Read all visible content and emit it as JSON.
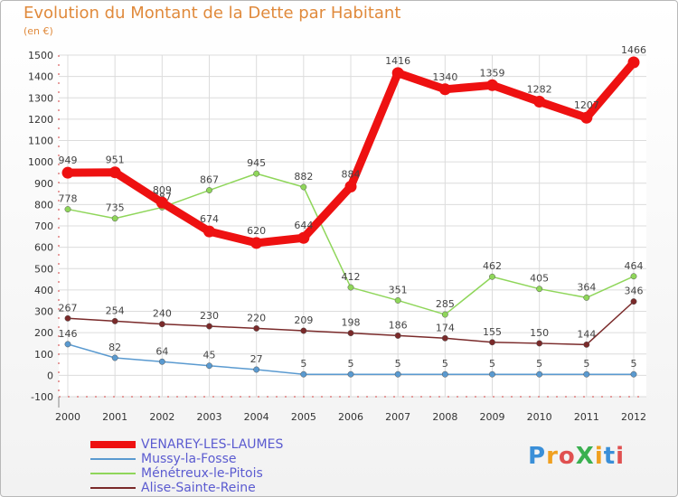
{
  "title": "Evolution du Montant de la Dette par Habitant",
  "subtitle": "(en €)",
  "logo": {
    "text": "ProXiti",
    "colors": [
      "#3a8fd8",
      "#f0a020",
      "#e05050",
      "#3ab050",
      "#f0a020",
      "#3a8fd8",
      "#e05050"
    ]
  },
  "chart_data": {
    "type": "line",
    "x": [
      "2000",
      "2001",
      "2002",
      "2003",
      "2004",
      "2005",
      "2006",
      "2007",
      "2008",
      "2009",
      "2010",
      "2011",
      "2012"
    ],
    "ylim": [
      -100,
      1500
    ],
    "yticks": [
      "-100",
      "0",
      "100",
      "200",
      "300",
      "400",
      "500",
      "600",
      "700",
      "800",
      "900",
      "1000",
      "1100",
      "1200",
      "1300",
      "1400",
      "1500"
    ],
    "grid": true,
    "legend_position": "bottom-left",
    "series": [
      {
        "name": "Ménétreux-le-Pitois",
        "color": "#8fd65a",
        "values": [
          778,
          735,
          787,
          867,
          945,
          882,
          412,
          351,
          285,
          462,
          405,
          364,
          464
        ],
        "labels": [
          "778",
          "735",
          "787",
          "867",
          "945",
          "882",
          "412",
          "351",
          "285",
          "462",
          "405",
          "364",
          "464"
        ]
      },
      {
        "name": "Alise-Sainte-Reine",
        "color": "#7a2a2a",
        "values": [
          267,
          254,
          240,
          230,
          220,
          209,
          198,
          186,
          174,
          155,
          150,
          144,
          346
        ],
        "labels": [
          "267",
          "254",
          "240",
          "230",
          "220",
          "209",
          "198",
          "186",
          "174",
          "155",
          "150",
          "144",
          "346"
        ]
      },
      {
        "name": "Mussy-la-Fosse",
        "color": "#5a9ad0",
        "values": [
          146,
          82,
          64,
          45,
          27,
          5,
          5,
          5,
          5,
          5,
          5,
          5,
          5
        ],
        "labels": [
          "146",
          "82",
          "64",
          "45",
          "27",
          "5",
          "5",
          "5",
          "5",
          "5",
          "5",
          "5",
          "5"
        ]
      },
      {
        "name": "VENAREY-LES-LAUMES",
        "color": "#ee1111",
        "values": [
          949,
          951,
          809,
          674,
          620,
          644,
          884,
          1416,
          1340,
          1359,
          1282,
          1207,
          1466
        ],
        "labels": [
          "949",
          "951",
          "809",
          "674",
          "620",
          "644",
          "884",
          "1416",
          "1340",
          "1359",
          "1282",
          "1207",
          "1466"
        ]
      }
    ],
    "legend": [
      {
        "name": "VENAREY-LES-LAUMES",
        "color": "#ee1111",
        "text_color": "#5b5bd0"
      },
      {
        "name": "Mussy-la-Fosse",
        "color": "#5a9ad0",
        "text_color": "#5b5bd0"
      },
      {
        "name": "Ménétreux-le-Pitois",
        "color": "#8fd65a",
        "text_color": "#5b5bd0"
      },
      {
        "name": "Alise-Sainte-Reine",
        "color": "#7a2a2a",
        "text_color": "#5b5bd0"
      }
    ]
  }
}
